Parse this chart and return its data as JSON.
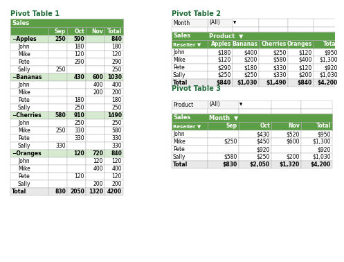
{
  "title_color": "#1F6B38",
  "header_bg": "#5B9E45",
  "group_row_bg": "#D6EAD0",
  "border_color": "#AAAAAA",
  "filter_bg": "#F0F0F0",
  "pivot1": {
    "title": "Pivot Table 1",
    "rows": [
      {
        "label": "Apples",
        "group": true,
        "vals": [
          "250",
          "590",
          "",
          "840"
        ]
      },
      {
        "label": "John",
        "group": false,
        "vals": [
          "",
          "180",
          "",
          "180"
        ]
      },
      {
        "label": "Mike",
        "group": false,
        "vals": [
          "",
          "120",
          "",
          "120"
        ]
      },
      {
        "label": "Pete",
        "group": false,
        "vals": [
          "",
          "290",
          "",
          "290"
        ]
      },
      {
        "label": "Sally",
        "group": false,
        "vals": [
          "250",
          "",
          "",
          "250"
        ]
      },
      {
        "label": "Bananas",
        "group": true,
        "vals": [
          "",
          "430",
          "600",
          "1030"
        ]
      },
      {
        "label": "John",
        "group": false,
        "vals": [
          "",
          "",
          "400",
          "400"
        ]
      },
      {
        "label": "Mike",
        "group": false,
        "vals": [
          "",
          "",
          "200",
          "200"
        ]
      },
      {
        "label": "Pete",
        "group": false,
        "vals": [
          "",
          "180",
          "",
          "180"
        ]
      },
      {
        "label": "Sally",
        "group": false,
        "vals": [
          "",
          "250",
          "",
          "250"
        ]
      },
      {
        "label": "Cherries",
        "group": true,
        "vals": [
          "580",
          "910",
          "",
          "1490"
        ]
      },
      {
        "label": "John",
        "group": false,
        "vals": [
          "",
          "250",
          "",
          "250"
        ]
      },
      {
        "label": "Mike",
        "group": false,
        "vals": [
          "250",
          "330",
          "",
          "580"
        ]
      },
      {
        "label": "Pete",
        "group": false,
        "vals": [
          "",
          "330",
          "",
          "330"
        ]
      },
      {
        "label": "Sally",
        "group": false,
        "vals": [
          "330",
          "",
          "",
          "330"
        ]
      },
      {
        "label": "Oranges",
        "group": true,
        "vals": [
          "",
          "120",
          "720",
          "840"
        ]
      },
      {
        "label": "John",
        "group": false,
        "vals": [
          "",
          "",
          "120",
          "120"
        ]
      },
      {
        "label": "Mike",
        "group": false,
        "vals": [
          "",
          "",
          "400",
          "400"
        ]
      },
      {
        "label": "Pete",
        "group": false,
        "vals": [
          "",
          "120",
          "",
          "120"
        ]
      },
      {
        "label": "Sally",
        "group": false,
        "vals": [
          "",
          "",
          "200",
          "200"
        ]
      },
      {
        "label": "Total",
        "group": "total",
        "vals": [
          "830",
          "2050",
          "1320",
          "4200"
        ]
      }
    ]
  },
  "pivot2": {
    "title": "Pivot Table 2",
    "filter": [
      "Month",
      "(All)"
    ],
    "rows": [
      {
        "label": "John",
        "vals": [
          "$180",
          "$400",
          "$250",
          "$120",
          "$950"
        ]
      },
      {
        "label": "Mike",
        "vals": [
          "$120",
          "$200",
          "$580",
          "$400",
          "$1,300"
        ]
      },
      {
        "label": "Pete",
        "vals": [
          "$290",
          "$180",
          "$330",
          "$120",
          "$920"
        ]
      },
      {
        "label": "Sally",
        "vals": [
          "$250",
          "$250",
          "$330",
          "$200",
          "$1,030"
        ]
      },
      {
        "label": "Total",
        "vals": [
          "$840",
          "$1,030",
          "$1,490",
          "$840",
          "$4,200"
        ]
      }
    ]
  },
  "pivot3": {
    "title": "Pivot Table 3",
    "filter": [
      "Product",
      "(All)"
    ],
    "rows": [
      {
        "label": "John",
        "vals": [
          "",
          "$430",
          "$520",
          "$950"
        ]
      },
      {
        "label": "Mike",
        "vals": [
          "$250",
          "$450",
          "$600",
          "$1,300"
        ]
      },
      {
        "label": "Pete",
        "vals": [
          "",
          "$920",
          "",
          "$920"
        ]
      },
      {
        "label": "Sally",
        "vals": [
          "$580",
          "$250",
          "$200",
          "$1,030"
        ]
      },
      {
        "label": "Total",
        "vals": [
          "$830",
          "$2,050",
          "$1,320",
          "$4,200"
        ]
      }
    ]
  }
}
